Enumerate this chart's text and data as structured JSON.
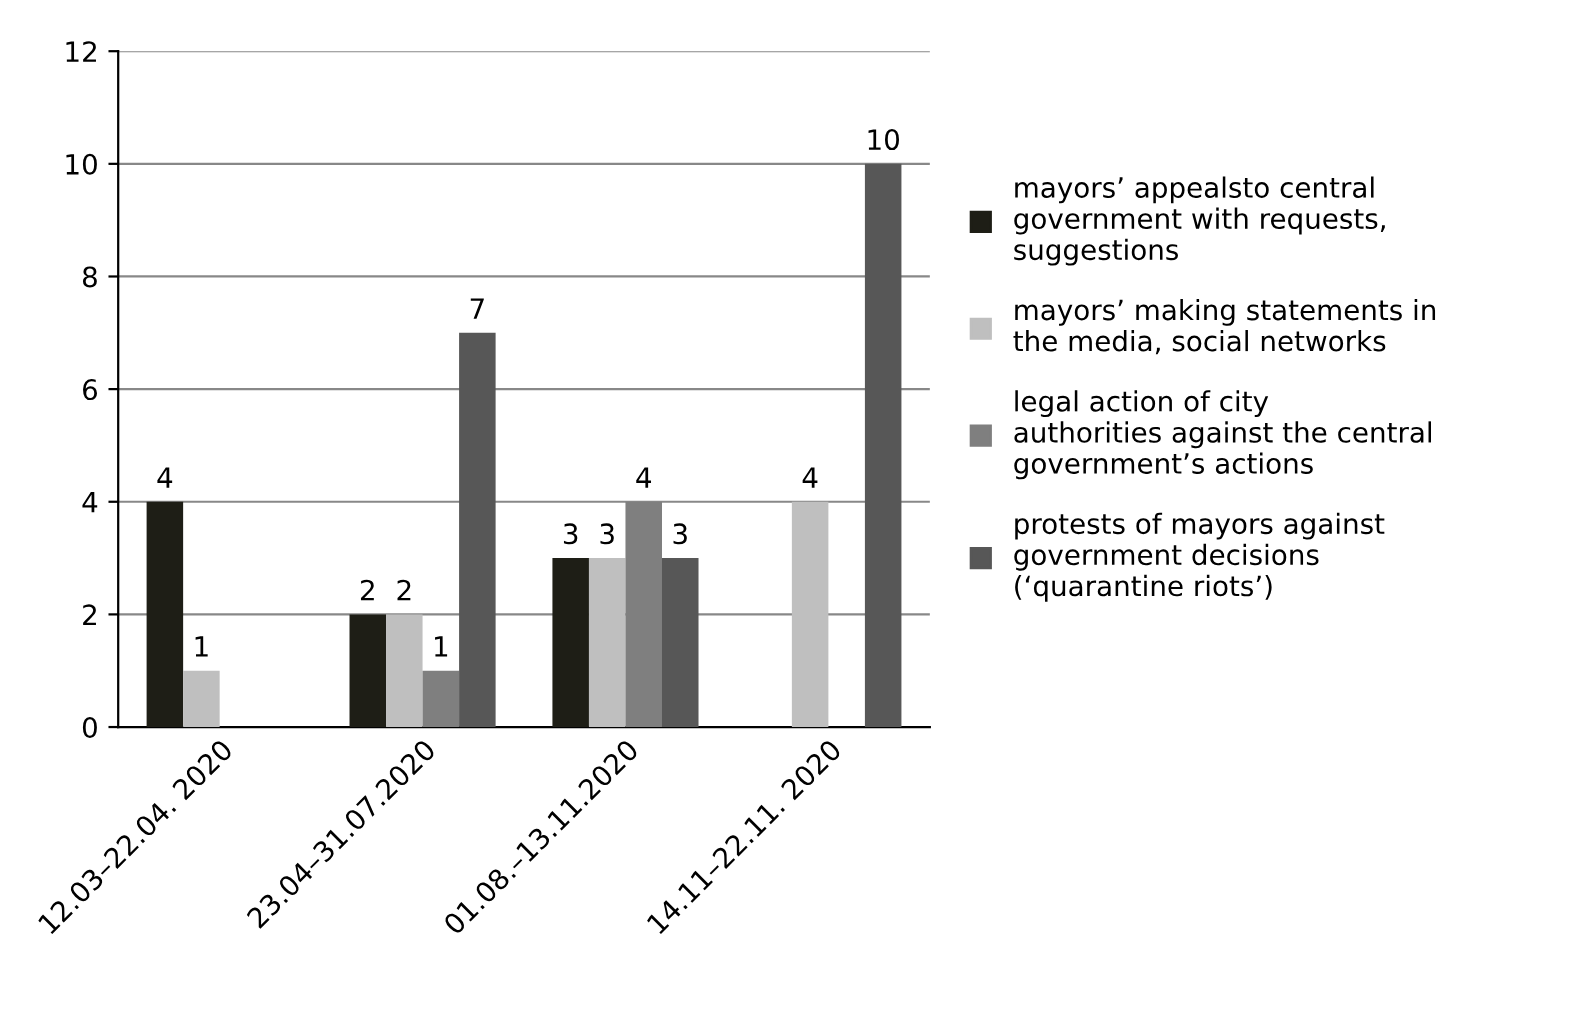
{
  "chart_data": {
    "type": "bar",
    "categories": [
      "12.03–22.04. 2020",
      "23.04–31.07.2020",
      "01.08.–13.11.2020",
      "14.11–22.11. 2020"
    ],
    "series": [
      {
        "name": "mayors’ appealsto central government with requests, suggestions",
        "color": "#1e1e16",
        "values": [
          4,
          2,
          3,
          null
        ]
      },
      {
        "name": "mayors’ making statements in the media, social networks",
        "color": "#bfbfbf",
        "values": [
          1,
          2,
          3,
          4
        ]
      },
      {
        "name": "legal action of city authorities against the central government’s actions",
        "color": "#7f7f7f",
        "values": [
          null,
          1,
          4,
          null
        ]
      },
      {
        "name": "protests of mayors against government decisions (‘quarantine riots’)",
        "color": "#575757",
        "values": [
          null,
          7,
          3,
          10
        ]
      }
    ],
    "ylim": [
      0,
      12
    ],
    "yticks": [
      0,
      2,
      4,
      6,
      8,
      10,
      12
    ],
    "grid": "y",
    "legend": "right",
    "data_labels": true
  }
}
